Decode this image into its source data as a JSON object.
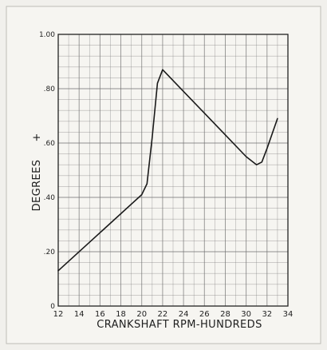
{
  "chart_data": {
    "type": "line",
    "xlabel": "CRANKSHAFT RPM-HUNDREDS",
    "ylabel": "DEGREES",
    "ylabel_suffix": "+",
    "xlim": [
      12,
      34
    ],
    "ylim": [
      0,
      1.0
    ],
    "x_ticks": [
      12,
      14,
      16,
      18,
      20,
      22,
      24,
      26,
      28,
      30,
      32,
      34
    ],
    "x_tick_labels": [
      "12",
      "14",
      "16",
      "18",
      "20",
      "22",
      "24",
      "26",
      "28",
      "30",
      "32",
      "34"
    ],
    "y_ticks": [
      0,
      0.2,
      0.4,
      0.6,
      0.8,
      1.0
    ],
    "y_tick_labels": [
      "0",
      ".20",
      ".40",
      ".60",
      ".80",
      "1.00"
    ],
    "grid": true,
    "series": [
      {
        "x": [
          12,
          16,
          20,
          20.5,
          21,
          21.5,
          22,
          24,
          26,
          28,
          30,
          31,
          31.5,
          32,
          33
        ],
        "y": [
          0.13,
          0.27,
          0.41,
          0.45,
          0.62,
          0.82,
          0.87,
          0.79,
          0.71,
          0.63,
          0.55,
          0.52,
          0.53,
          0.58,
          0.69
        ]
      }
    ],
    "colors": {
      "line": "#1a1a1a",
      "grid": "#6f6f6f",
      "background": "#f6f5f1"
    }
  }
}
